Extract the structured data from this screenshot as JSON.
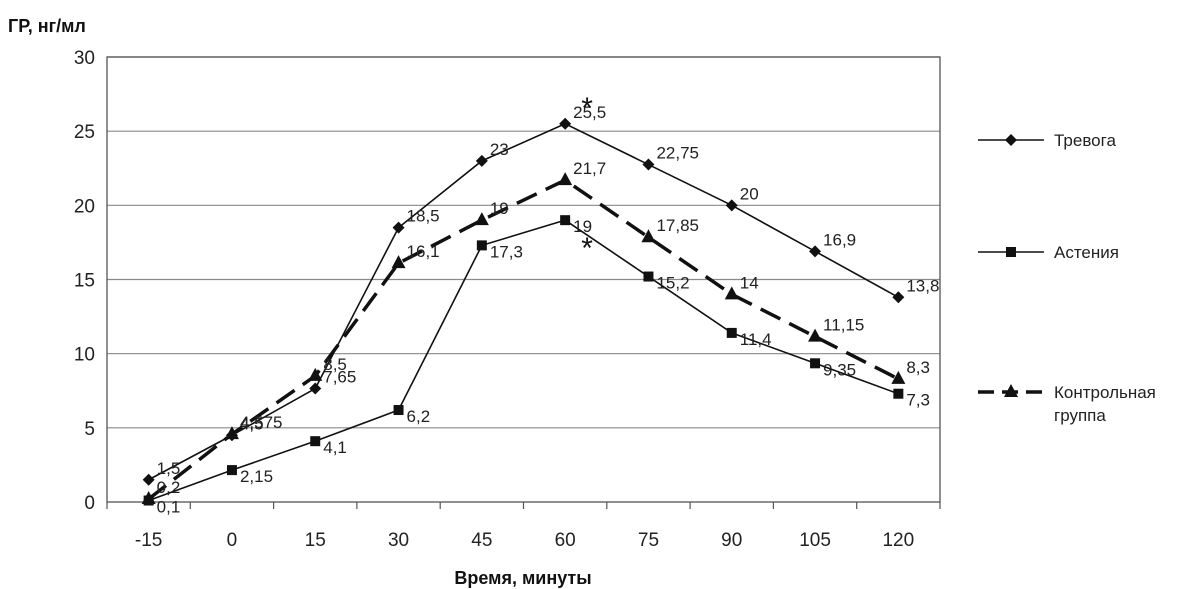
{
  "chart_data": {
    "type": "line",
    "ylabel": "ГР, нг/мл",
    "xlabel": "Время, минуты",
    "ylim": [
      0,
      30
    ],
    "yticks": [
      "0",
      "5",
      "10",
      "15",
      "20",
      "25",
      "30"
    ],
    "categories": [
      "-15",
      "0",
      "15",
      "30",
      "45",
      "60",
      "75",
      "90",
      "105",
      "120"
    ],
    "legend_position": "right",
    "grid": "horizontal",
    "series": [
      {
        "name": "Тревога",
        "marker": "diamond",
        "line": "solid",
        "values": [
          1.5,
          4.5,
          7.65,
          18.5,
          23,
          25.5,
          22.75,
          20,
          16.9,
          13.8
        ],
        "labels": [
          "1,5",
          "4,5",
          "7,65",
          "18,5",
          "23",
          "25,5",
          "22,75",
          "20",
          "16,9",
          "13,8"
        ]
      },
      {
        "name": "Астения",
        "marker": "square",
        "line": "solid",
        "values": [
          0.1,
          2.15,
          4.1,
          6.2,
          17.3,
          19,
          15.2,
          11.4,
          9.35,
          7.3
        ],
        "labels": [
          "0,1",
          "2,15",
          "4,1",
          "6,2",
          "17,3",
          "19",
          "15,2",
          "11,4",
          "9,35",
          "7,3"
        ]
      },
      {
        "name": "Контрольная группа",
        "legend_lines": [
          "Контрольная",
          "группа"
        ],
        "marker": "triangle",
        "line": "dashed",
        "values": [
          0.2,
          4.575,
          8.5,
          16.1,
          19,
          21.7,
          17.85,
          14,
          11.15,
          8.3
        ],
        "labels": [
          "0,2",
          "4,575",
          "8,5",
          "16,1",
          "19",
          "21,7",
          "17,85",
          "14",
          "11,15",
          "8,3"
        ]
      }
    ],
    "annotations": [
      {
        "text": "*",
        "series": 0,
        "index": 5
      },
      {
        "text": "*",
        "series": 1,
        "index": 5
      }
    ]
  }
}
